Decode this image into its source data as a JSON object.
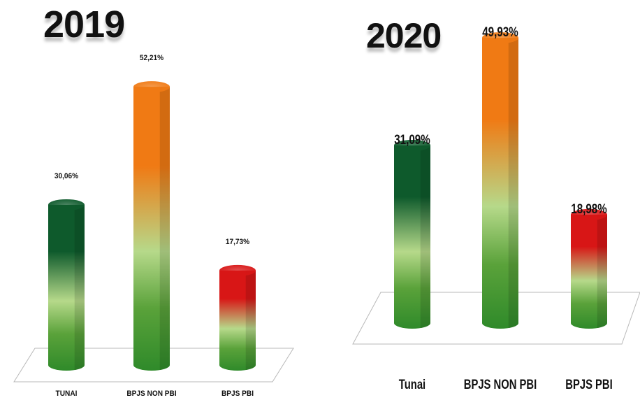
{
  "chart_data": [
    {
      "type": "bar",
      "title": "2019",
      "categories": [
        "TUNAI",
        "BPJS NON PBI",
        "BPJS PBI"
      ],
      "values": [
        30.06,
        52.21,
        17.73
      ],
      "value_labels": [
        "30,06%",
        "52,21%",
        "17,73%"
      ],
      "bar_top_colors": [
        "#0e5a2c",
        "#f07a14",
        "#d81616"
      ],
      "bar_base_color": "#2f8a2a",
      "ylim": [
        0,
        60
      ],
      "grid": false,
      "style": "3d-cylinder"
    },
    {
      "type": "bar",
      "title": "2020",
      "categories": [
        "Tunai",
        "BPJS NON PBI",
        "BPJS PBI"
      ],
      "values": [
        31.09,
        49.93,
        18.98
      ],
      "value_labels": [
        "31,09%",
        "49,93%",
        "18,98%"
      ],
      "bar_top_colors": [
        "#0e5a2c",
        "#f07a14",
        "#d81616"
      ],
      "bar_base_color": "#2f8a2a",
      "ylim": [
        0,
        56
      ],
      "grid": false,
      "style": "3d-cylinder"
    }
  ]
}
